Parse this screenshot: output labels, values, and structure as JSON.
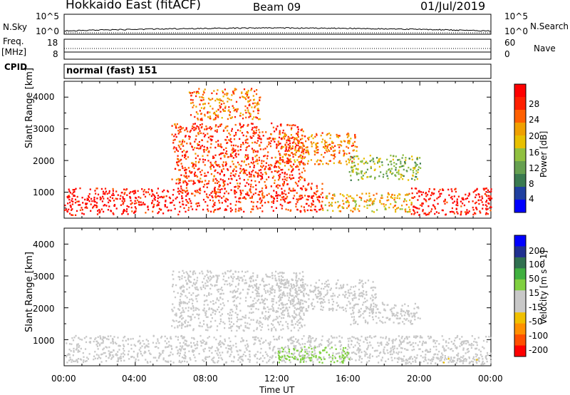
{
  "header": {
    "station": "Hokkaido East (fitACF)",
    "beam": "Beam 09",
    "date": "01/Jul/2019"
  },
  "side_labels": {
    "nsky": "N.Sky",
    "nsearch": "N.Search",
    "freq_top": "Freq.",
    "freq_unit": "[MHz]",
    "nave": "Nave",
    "cpid": "CPID"
  },
  "noise_axis": {
    "left_ticks": [
      "10^5",
      "10^0"
    ],
    "right_ticks": [
      "10^5",
      "10^0"
    ]
  },
  "freq_axis": {
    "left_ticks": [
      "18",
      "8"
    ],
    "right_ticks": [
      "60",
      "0"
    ]
  },
  "cpid_text": "normal (fast) 151",
  "colors": {
    "power_scale": [
      "#0000ff",
      "#2040a0",
      "#3a7a50",
      "#66a050",
      "#90c040",
      "#e8c000",
      "#f0a000",
      "#ff6000",
      "#ff2000",
      "#ff0000"
    ],
    "velocity_scale": [
      "#ff0000",
      "#ff5000",
      "#ff9000",
      "#f0c000",
      "#c8c8c8",
      "#c8c8c8",
      "#80d040",
      "#40b040",
      "#307050",
      "#203090",
      "#0000ff"
    ],
    "ground_scatter": "#c8c8c8"
  },
  "chart_data": [
    {
      "type": "heatmap",
      "name": "power",
      "ylabel": "Slant Range [km]",
      "y_ticks": [
        "1000",
        "2000",
        "3000",
        "4000"
      ],
      "ylim": [
        180,
        4500
      ],
      "colorbar": {
        "label": "Power [dB]",
        "ticks": [
          "28",
          "24",
          "20",
          "16",
          "12",
          "8",
          "4"
        ],
        "range": [
          0,
          30
        ]
      },
      "regions": [
        {
          "t0": 0.0,
          "t1": 6.5,
          "r0": 300,
          "r1": 1150,
          "value": 28
        },
        {
          "t0": 6.5,
          "t1": 14.5,
          "r0": 400,
          "r1": 1300,
          "value": 26
        },
        {
          "t0": 14.5,
          "t1": 19.5,
          "r0": 400,
          "r1": 1000,
          "value": 18
        },
        {
          "t0": 19.5,
          "t1": 24.0,
          "r0": 300,
          "r1": 1150,
          "value": 28
        },
        {
          "t0": 6.0,
          "t1": 13.5,
          "r0": 1300,
          "r1": 3200,
          "value": 25
        },
        {
          "t0": 12.0,
          "t1": 16.5,
          "r0": 1900,
          "r1": 2900,
          "value": 21
        },
        {
          "t0": 16.0,
          "t1": 20.0,
          "r0": 1400,
          "r1": 2200,
          "value": 13
        },
        {
          "t0": 7.0,
          "t1": 11.0,
          "r0": 3300,
          "r1": 4300,
          "value": 22
        }
      ]
    },
    {
      "type": "heatmap",
      "name": "velocity",
      "ylabel": "Slant Range [km]",
      "xlabel": "Time UT",
      "x_ticks": [
        "00:00",
        "04:00",
        "08:00",
        "12:00",
        "16:00",
        "20:00",
        "00:00"
      ],
      "y_ticks": [
        "1000",
        "2000",
        "3000",
        "4000"
      ],
      "xlim": [
        0,
        24
      ],
      "ylim": [
        180,
        4500
      ],
      "colorbar": {
        "label": "Velocity [m s^-1]",
        "ticks": [
          "200",
          "100",
          "50",
          "15",
          "-15",
          "-50",
          "-100",
          "-200"
        ],
        "range": [
          -250,
          250
        ]
      },
      "regions": [
        {
          "t0": 0.0,
          "t1": 24.0,
          "r0": 300,
          "r1": 1150,
          "value": 0
        },
        {
          "t0": 6.0,
          "t1": 13.5,
          "r0": 1300,
          "r1": 3200,
          "value": 0
        },
        {
          "t0": 12.0,
          "t1": 17.5,
          "r0": 1900,
          "r1": 2900,
          "value": 0
        },
        {
          "t0": 16.0,
          "t1": 20.0,
          "r0": 1500,
          "r1": 2200,
          "value": 0
        },
        {
          "t0": 12.0,
          "t1": 16.0,
          "r0": 300,
          "r1": 800,
          "value": 40
        },
        {
          "t0": 19.0,
          "t1": 24.0,
          "r0": 250,
          "r1": 500,
          "value": -60
        }
      ]
    }
  ]
}
